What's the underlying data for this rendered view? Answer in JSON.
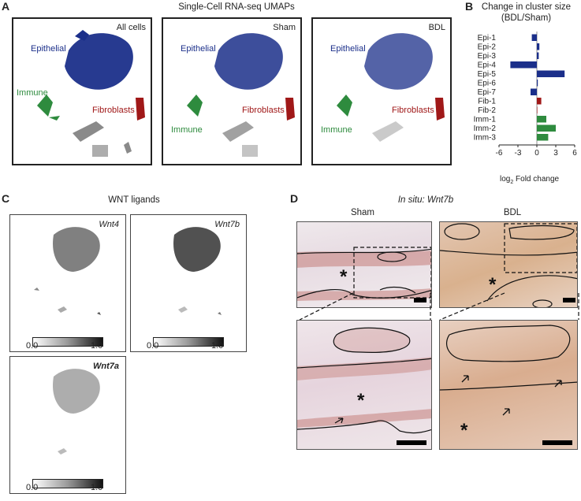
{
  "panels": {
    "A": {
      "letter": "A",
      "title": "Single-Cell RNA-seq UMAPs",
      "plots": [
        {
          "tag": "All cells",
          "labels": {
            "epithelial": "Epithelial",
            "immune": "Immune",
            "fibroblasts": "Fibroblasts"
          }
        },
        {
          "tag": "Sham",
          "labels": {
            "epithelial": "Epithelial",
            "immune": "Immune",
            "fibroblasts": "Fibroblasts"
          }
        },
        {
          "tag": "BDL",
          "labels": {
            "epithelial": "Epithelial",
            "immune": "Immune",
            "fibroblasts": "Fibroblasts"
          }
        }
      ]
    },
    "B": {
      "letter": "B",
      "title_line1": "Change in cluster size",
      "title_line2": "(BDL/Sham)",
      "xlabel_pre": "log",
      "xlabel_sub": "2",
      "xlabel_post": " Fold change"
    },
    "C": {
      "letter": "C",
      "title": "WNT ligands",
      "plots": [
        {
          "tag": "Wnt4"
        },
        {
          "tag": "Wnt7b"
        },
        {
          "tag": "Wnt7a"
        }
      ],
      "cbar_min": "0.0",
      "cbar_max": "1.0"
    },
    "D": {
      "letter": "D",
      "title": "In situ: Wnt7b",
      "col_sham": "Sham",
      "col_bdl": "BDL",
      "star": "*"
    }
  },
  "colors": {
    "epithelial": "#1b2f8a",
    "immune": "#2e8b3e",
    "fibroblasts": "#a01818",
    "grey": "#8a8a8a"
  },
  "chart_data": {
    "type": "bar",
    "orientation": "horizontal",
    "categories": [
      "Epi-1",
      "Epi-2",
      "Epi-3",
      "Epi-4",
      "Epi-5",
      "Epi-6",
      "Epi-7",
      "Fib-1",
      "Fib-2",
      "Imm-1",
      "Imm-2",
      "Imm-3"
    ],
    "values": [
      -0.8,
      0.4,
      0.3,
      -4.2,
      4.4,
      0.15,
      -1.0,
      0.7,
      0.0,
      1.5,
      3.0,
      1.8
    ],
    "bar_colors": [
      "#1b2f8a",
      "#1b2f8a",
      "#1b2f8a",
      "#1b2f8a",
      "#1b2f8a",
      "#1b2f8a",
      "#1b2f8a",
      "#a01818",
      "#a01818",
      "#2e8b3e",
      "#2e8b3e",
      "#2e8b3e"
    ],
    "xticks": [
      -6,
      -3,
      0,
      3,
      6
    ],
    "xtick_labels": [
      "-6",
      "-3",
      "0",
      "3",
      "6"
    ],
    "xlim": [
      -6,
      6
    ],
    "title": "Change in cluster size (BDL/Sham)",
    "xlabel": "log2 Fold change",
    "grid": false
  }
}
